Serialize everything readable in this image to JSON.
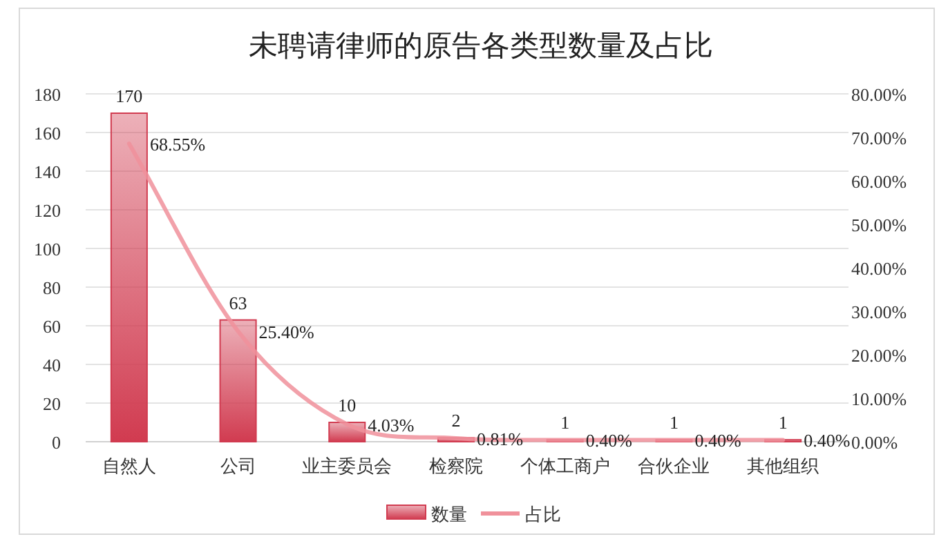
{
  "chart_data": {
    "type": "bar",
    "title": "未聘请律师的原告各类型数量及占比",
    "categories": [
      "自然人",
      "公司",
      "业主委员会",
      "检察院",
      "个体工商户",
      "合伙企业",
      "其他组织"
    ],
    "series": [
      {
        "name": "数量",
        "color": "#d13b50",
        "values": [
          170,
          63,
          10,
          2,
          1,
          1,
          1
        ],
        "value_labels": [
          "170",
          "63",
          "10",
          "2",
          "1",
          "1",
          "1"
        ]
      },
      {
        "name": "占比",
        "type": "line",
        "axis": "y2",
        "color": "#f0919b",
        "values": [
          68.55,
          25.4,
          4.03,
          0.81,
          0.4,
          0.4,
          0.4
        ],
        "value_labels": [
          "68.55%",
          "25.40%",
          "4.03%",
          "0.81%",
          "0.40%",
          "0.40%",
          "0.40%"
        ]
      }
    ],
    "ylim": [
      0,
      180
    ],
    "yticks": [
      0,
      20,
      40,
      60,
      80,
      100,
      120,
      140,
      160,
      180
    ],
    "y2lim": [
      0,
      80
    ],
    "y2ticks": [
      {
        "value": 0,
        "label": "0.00%"
      },
      {
        "value": 10,
        "label": "10.00%"
      },
      {
        "value": 20,
        "label": "20.00%"
      },
      {
        "value": 30,
        "label": "30.00%"
      },
      {
        "value": 40,
        "label": "40.00%"
      },
      {
        "value": 50,
        "label": "50.00%"
      },
      {
        "value": 60,
        "label": "60.00%"
      },
      {
        "value": 70,
        "label": "70.00%"
      },
      {
        "value": 80,
        "label": "80.00%"
      }
    ],
    "grid": "y",
    "legend": "bottom"
  }
}
